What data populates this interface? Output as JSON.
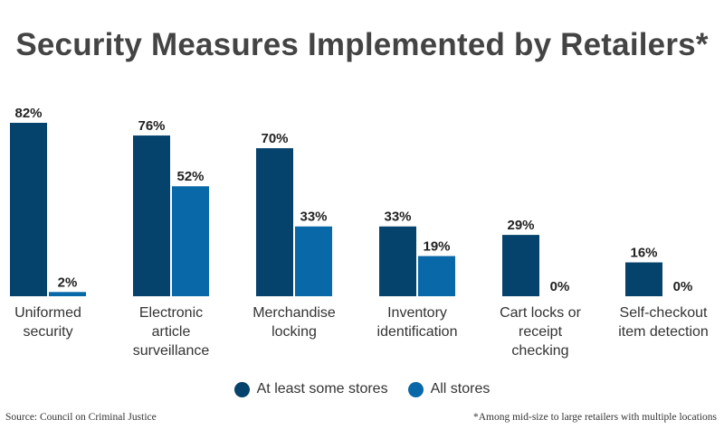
{
  "colors": {
    "series_1": "#05426c",
    "series_2": "#0868a8",
    "title": "#444444"
  },
  "chart_data": {
    "type": "bar",
    "title": "Security Measures Implemented by Retailers*",
    "categories": [
      [
        "Uniformed",
        "security"
      ],
      [
        "Electronic",
        "article",
        "surveillance"
      ],
      [
        "Merchandise",
        "locking"
      ],
      [
        "Inventory",
        "identification"
      ],
      [
        "Cart locks or",
        "receipt",
        "checking"
      ],
      [
        "Self-checkout",
        "item detection"
      ]
    ],
    "series": [
      {
        "name": "At least some stores",
        "values": [
          82,
          76,
          70,
          33,
          29,
          16
        ]
      },
      {
        "name": "All stores",
        "values": [
          2,
          52,
          33,
          19,
          0,
          0
        ]
      }
    ],
    "value_suffix": "%",
    "ylim": [
      0,
      82
    ],
    "grid": false,
    "legend_position": "bottom-center"
  },
  "legend": {
    "items": [
      "At least some stores",
      "All stores"
    ]
  },
  "footer": {
    "source": "Source: Council on Criminal Justice",
    "note": "*Among mid-size to large retailers with multiple locations"
  }
}
